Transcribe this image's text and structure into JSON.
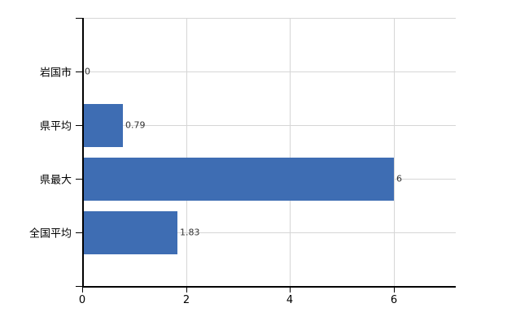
{
  "chart_data": {
    "type": "bar",
    "orientation": "horizontal",
    "title": "",
    "xlabel": "",
    "ylabel": "",
    "categories": [
      "岩国市",
      "県平均",
      "県最大",
      "全国平均"
    ],
    "values": [
      0,
      0.79,
      6,
      1.83
    ],
    "value_labels": [
      "0",
      "0.79",
      "6",
      "1.83"
    ],
    "x_ticks": [
      0,
      2,
      4,
      6
    ],
    "x_tick_labels": [
      "0",
      "2",
      "4",
      "6"
    ],
    "xlim": [
      0,
      7.2
    ],
    "grid": true,
    "legend": "none",
    "colors": {
      "bar": "#3e6db3",
      "gridline": "#d6d6d6",
      "axis": "#000000",
      "value_label": "#333333",
      "background": "#ffffff"
    }
  }
}
